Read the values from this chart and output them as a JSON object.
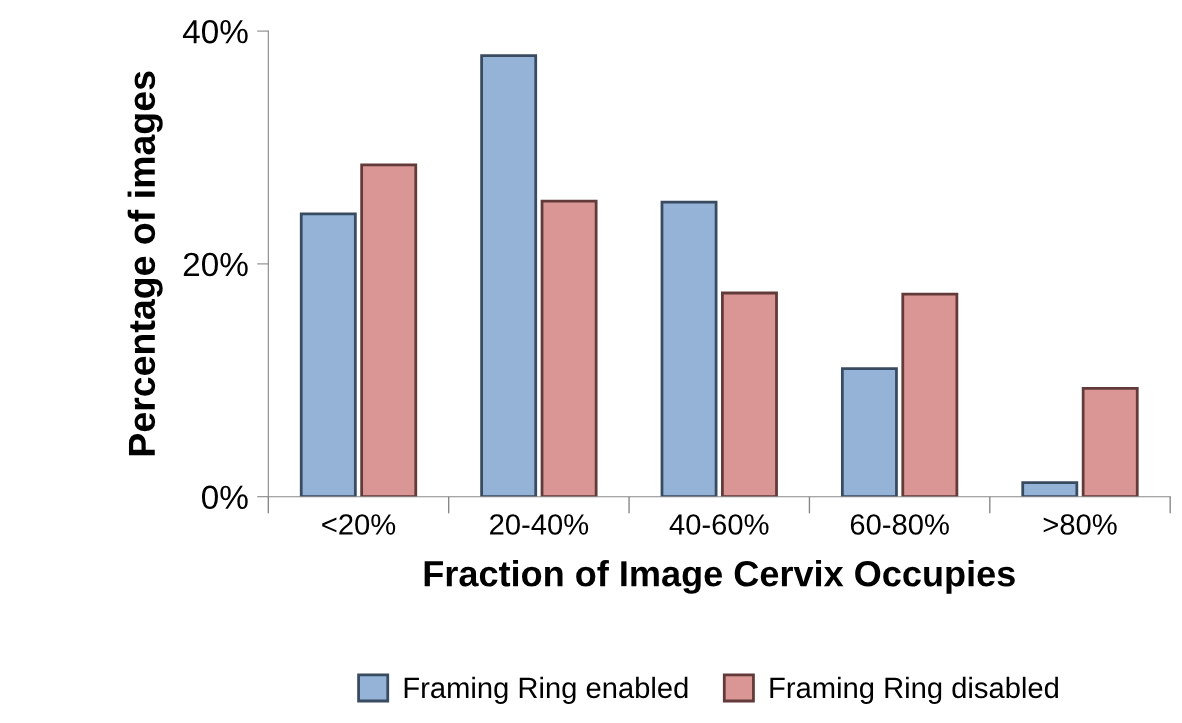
{
  "chart_data": {
    "type": "bar",
    "xlabel": "Fraction of Image Cervix Occupies",
    "ylabel": "Percentage of images",
    "categories": [
      "<20%",
      "20-40%",
      "40-60%",
      "60-80%",
      ">80%"
    ],
    "series": [
      {
        "name": "Framing Ring enabled",
        "color": "#95b3d7",
        "values": [
          24.3,
          37.9,
          25.3,
          11.0,
          1.2
        ]
      },
      {
        "name": "Framing Ring disabled",
        "color": "#d99694",
        "values": [
          28.5,
          25.4,
          17.5,
          17.4,
          9.3
        ]
      }
    ],
    "ylim": [
      0,
      40
    ],
    "yticks": [
      {
        "value": 0,
        "label": "0%"
      },
      {
        "value": 20,
        "label": "20%"
      },
      {
        "value": 40,
        "label": "40%"
      }
    ],
    "grid": false,
    "legend": "bottom"
  }
}
